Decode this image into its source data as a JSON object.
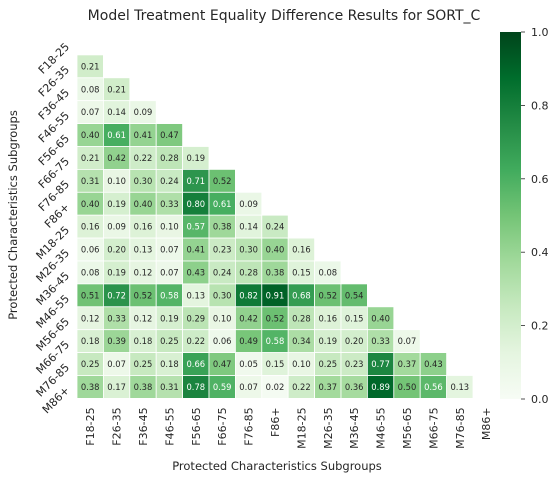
{
  "chart_data": {
    "type": "heatmap",
    "title": "Model Treatment Equality Difference Results for SORT_C",
    "xlabel": "Protected Characteristics Subgroups",
    "ylabel": "Protected Characteristics Subgroups",
    "categories": [
      "F18-25",
      "F26-35",
      "F36-45",
      "F46-55",
      "F56-65",
      "F66-75",
      "F76-85",
      "F86+",
      "M18-25",
      "M26-35",
      "M36-45",
      "M46-55",
      "M56-65",
      "M66-75",
      "M76-85",
      "M86+"
    ],
    "mask": "lower-triangle",
    "colormap": "Greens",
    "vmin": 0,
    "vmax": 1,
    "colorbar_ticks": [
      "0.0",
      "0.2",
      "0.4",
      "0.6",
      "0.8",
      "1.0"
    ],
    "values": [
      [],
      [
        "0.21"
      ],
      [
        "0.08",
        "0.21"
      ],
      [
        "0.07",
        "0.14",
        "0.09"
      ],
      [
        "0.40",
        "0.61",
        "0.41",
        "0.47"
      ],
      [
        "0.21",
        "0.42",
        "0.22",
        "0.28",
        "0.19"
      ],
      [
        "0.31",
        "0.10",
        "0.30",
        "0.24",
        "0.71",
        "0.52"
      ],
      [
        "0.40",
        "0.19",
        "0.40",
        "0.33",
        "0.80",
        "0.61",
        "0.09"
      ],
      [
        "0.16",
        "0.09",
        "0.16",
        "0.10",
        "0.57",
        "0.38",
        "0.14",
        "0.24"
      ],
      [
        "0.06",
        "0.20",
        "0.13",
        "0.07",
        "0.41",
        "0.23",
        "0.30",
        "0.40",
        "0.16"
      ],
      [
        "0.08",
        "0.19",
        "0.12",
        "0.07",
        "0.43",
        "0.24",
        "0.28",
        "0.38",
        "0.15",
        "0.08"
      ],
      [
        "0.51",
        "0.72",
        "0.52",
        "0.58",
        "0.13",
        "0.30",
        "0.82",
        "0.91",
        "0.68",
        "0.52",
        "0.54"
      ],
      [
        "0.12",
        "0.33",
        "0.12",
        "0.19",
        "0.29",
        "0.10",
        "0.42",
        "0.52",
        "0.28",
        "0.16",
        "0.15",
        "0.40"
      ],
      [
        "0.18",
        "0.39",
        "0.18",
        "0.25",
        "0.22",
        "0.06",
        "0.49",
        "0.58",
        "0.34",
        "0.19",
        "0.20",
        "0.33",
        "0.07"
      ],
      [
        "0.25",
        "0.07",
        "0.25",
        "0.18",
        "0.66",
        "0.47",
        "0.05",
        "0.15",
        "0.10",
        "0.25",
        "0.23",
        "0.77",
        "0.37",
        "0.43"
      ],
      [
        "0.38",
        "0.17",
        "0.38",
        "0.31",
        "0.78",
        "0.59",
        "0.07",
        "0.02",
        "0.22",
        "0.37",
        "0.36",
        "0.89",
        "0.50",
        "0.56",
        "0.13"
      ]
    ]
  }
}
